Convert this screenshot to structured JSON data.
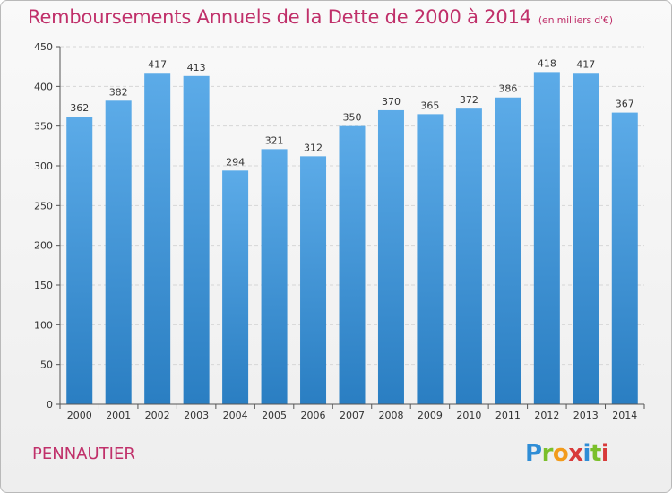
{
  "title": "Remboursements Annuels de la Dette de 2000 à 2014",
  "unit_note": "(en milliers d'€)",
  "town": "PENNAUTIER",
  "brand": {
    "letters": [
      "P",
      "r",
      "o",
      "x",
      "i",
      "t",
      "i"
    ],
    "colors": [
      "#2f8dd6",
      "#7bbf2a",
      "#f29b1b",
      "#d83a3a",
      "#2f8dd6",
      "#7bbf2a",
      "#d83a3a"
    ]
  },
  "colors": {
    "bar_top": "#5cabe8",
    "bar_bottom": "#2a7ec2",
    "title": "#c0306a"
  },
  "chart_data": {
    "type": "bar",
    "categories": [
      "2000",
      "2001",
      "2002",
      "2003",
      "2004",
      "2005",
      "2006",
      "2007",
      "2008",
      "2009",
      "2010",
      "2011",
      "2012",
      "2013",
      "2014"
    ],
    "values": [
      362,
      382,
      417,
      413,
      294,
      321,
      312,
      350,
      370,
      365,
      372,
      386,
      418,
      417,
      367
    ],
    "ylim": [
      0,
      450
    ],
    "yticks": [
      0,
      50,
      100,
      150,
      200,
      250,
      300,
      350,
      400,
      450
    ],
    "grid": true,
    "data_labels": true,
    "title": "Remboursements Annuels de la Dette de 2000 à 2014",
    "xlabel": "",
    "ylabel": ""
  }
}
